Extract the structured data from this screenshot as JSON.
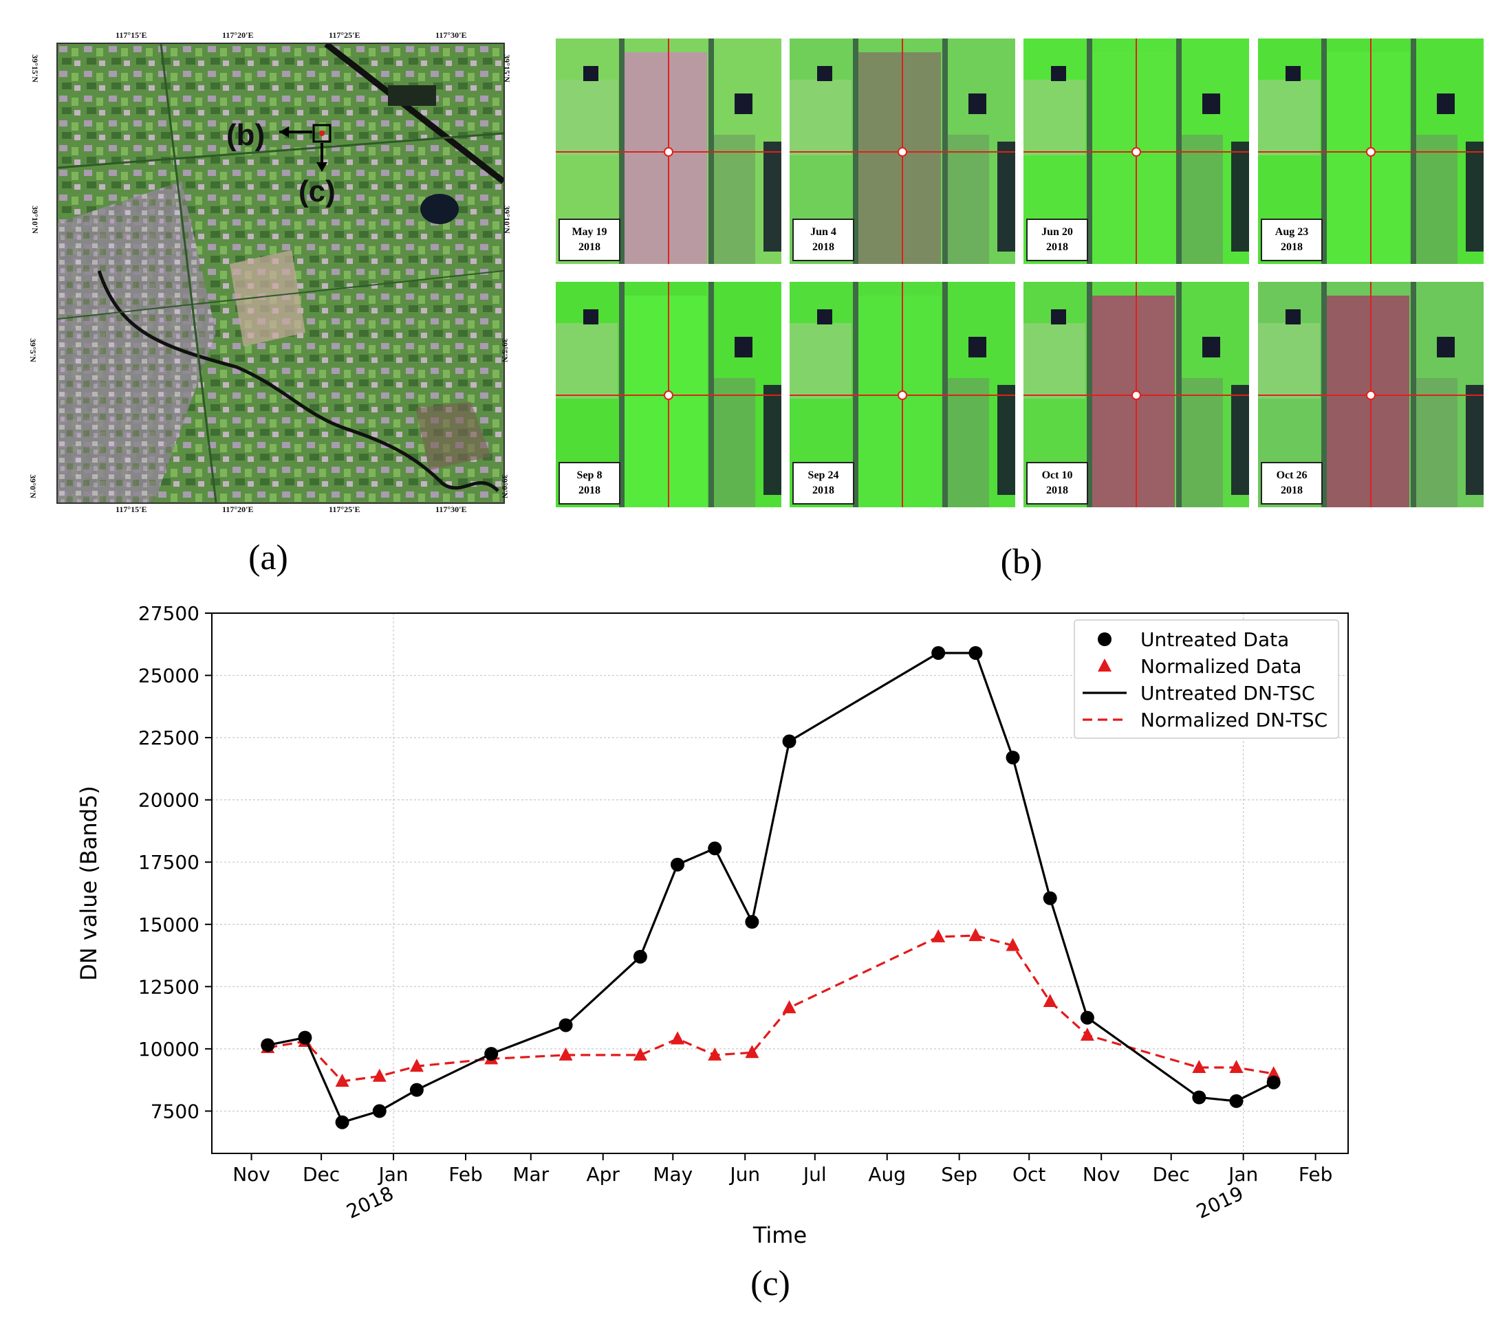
{
  "panels": {
    "a": "(a)",
    "b": "(b)",
    "c": "(c)"
  },
  "map": {
    "label_b": "(b)",
    "label_c": "(c)",
    "top_ticks": [
      "117°15'E",
      "117°20'E",
      "117°25'E",
      "117°30'E"
    ],
    "bottom_ticks": [
      "117°15'E",
      "117°20'E",
      "117°25'E",
      "117°30'E"
    ],
    "left_ticks": [
      "39°15'N",
      "39°10'N",
      "39°5'N",
      "39°0'N"
    ],
    "right_ticks": [
      "39°15'N",
      "39°10'N",
      "39°5'N",
      "39°0'N"
    ],
    "colors": {
      "vegetation": "#4f8a3c",
      "urban": "#a89aa8",
      "river": "#111111"
    }
  },
  "tiles": [
    {
      "date": "May 19",
      "year": "2018",
      "base": "#7fd45f",
      "field": "#b99aa3"
    },
    {
      "date": "Jun 4",
      "year": "2018",
      "base": "#6fcf58",
      "field": "#7c8a62"
    },
    {
      "date": "Jun 20",
      "year": "2018",
      "base": "#55e23b",
      "field": "#58e43c"
    },
    {
      "date": "Aug 23",
      "year": "2018",
      "base": "#52df38",
      "field": "#55e53b"
    },
    {
      "date": "Sep 8",
      "year": "2018",
      "base": "#50dd36",
      "field": "#56ea3c"
    },
    {
      "date": "Sep 24",
      "year": "2018",
      "base": "#52dd3a",
      "field": "#54e33c"
    },
    {
      "date": "Oct 10",
      "year": "2018",
      "base": "#5cd844",
      "field": "#9b5f66"
    },
    {
      "date": "Oct 26",
      "year": "2018",
      "base": "#6cc85a",
      "field": "#955c62"
    }
  ],
  "chart_data": {
    "type": "line",
    "xlabel": "Time",
    "ylabel": "DN value (Band5)",
    "ylim": [
      5800,
      27500
    ],
    "yticks": [
      7500,
      10000,
      12500,
      15000,
      17500,
      20000,
      22500,
      25000,
      27500
    ],
    "xlim": [
      "2017-10-15",
      "2019-02-15"
    ],
    "xticks": [
      {
        "date": "2017-11-01",
        "label": "Nov"
      },
      {
        "date": "2017-12-01",
        "label": "Dec"
      },
      {
        "date": "2018-01-01",
        "label": "Jan",
        "year": "2018"
      },
      {
        "date": "2018-02-01",
        "label": "Feb"
      },
      {
        "date": "2018-03-01",
        "label": "Mar"
      },
      {
        "date": "2018-04-01",
        "label": "Apr"
      },
      {
        "date": "2018-05-01",
        "label": "May"
      },
      {
        "date": "2018-06-01",
        "label": "Jun"
      },
      {
        "date": "2018-07-01",
        "label": "Jul"
      },
      {
        "date": "2018-08-01",
        "label": "Aug"
      },
      {
        "date": "2018-09-01",
        "label": "Sep"
      },
      {
        "date": "2018-10-01",
        "label": "Oct"
      },
      {
        "date": "2018-11-01",
        "label": "Nov"
      },
      {
        "date": "2018-12-01",
        "label": "Dec"
      },
      {
        "date": "2019-01-01",
        "label": "Jan",
        "year": "2019"
      },
      {
        "date": "2019-02-01",
        "label": "Feb"
      }
    ],
    "grid": true,
    "legend_position": "top-right",
    "series": [
      {
        "name": "Untreated Data",
        "line_name": "Untreated DN-TSC",
        "color": "#000000",
        "marker": "circle",
        "dashed": false,
        "points": [
          {
            "x": "2017-11-08",
            "y": 10150
          },
          {
            "x": "2017-11-24",
            "y": 10450
          },
          {
            "x": "2017-12-10",
            "y": 7050
          },
          {
            "x": "2017-12-26",
            "y": 7500
          },
          {
            "x": "2018-01-11",
            "y": 8350
          },
          {
            "x": "2018-02-12",
            "y": 9800
          },
          {
            "x": "2018-03-16",
            "y": 10950
          },
          {
            "x": "2018-04-17",
            "y": 13700
          },
          {
            "x": "2018-05-03",
            "y": 17400
          },
          {
            "x": "2018-05-19",
            "y": 18050
          },
          {
            "x": "2018-06-04",
            "y": 15100
          },
          {
            "x": "2018-06-20",
            "y": 22350
          },
          {
            "x": "2018-08-23",
            "y": 25900
          },
          {
            "x": "2018-09-08",
            "y": 25900
          },
          {
            "x": "2018-09-24",
            "y": 21700
          },
          {
            "x": "2018-10-10",
            "y": 16050
          },
          {
            "x": "2018-10-26",
            "y": 11250
          },
          {
            "x": "2018-12-13",
            "y": 8050
          },
          {
            "x": "2018-12-29",
            "y": 7900
          },
          {
            "x": "2019-01-14",
            "y": 8650
          }
        ]
      },
      {
        "name": "Normalized Data",
        "line_name": "Normalized DN-TSC",
        "color": "#e31a1c",
        "marker": "triangle",
        "dashed": true,
        "points": [
          {
            "x": "2017-11-08",
            "y": 10050
          },
          {
            "x": "2017-11-24",
            "y": 10300
          },
          {
            "x": "2017-12-10",
            "y": 8700
          },
          {
            "x": "2017-12-26",
            "y": 8900
          },
          {
            "x": "2018-01-11",
            "y": 9300
          },
          {
            "x": "2018-02-12",
            "y": 9600
          },
          {
            "x": "2018-03-16",
            "y": 9750
          },
          {
            "x": "2018-04-17",
            "y": 9750
          },
          {
            "x": "2018-05-03",
            "y": 10400
          },
          {
            "x": "2018-05-19",
            "y": 9750
          },
          {
            "x": "2018-06-04",
            "y": 9850
          },
          {
            "x": "2018-06-20",
            "y": 11650
          },
          {
            "x": "2018-08-23",
            "y": 14500
          },
          {
            "x": "2018-09-08",
            "y": 14550
          },
          {
            "x": "2018-09-24",
            "y": 14150
          },
          {
            "x": "2018-10-10",
            "y": 11900
          },
          {
            "x": "2018-10-26",
            "y": 10550
          },
          {
            "x": "2018-12-13",
            "y": 9250
          },
          {
            "x": "2018-12-29",
            "y": 9250
          },
          {
            "x": "2019-01-14",
            "y": 9000
          }
        ]
      }
    ]
  }
}
